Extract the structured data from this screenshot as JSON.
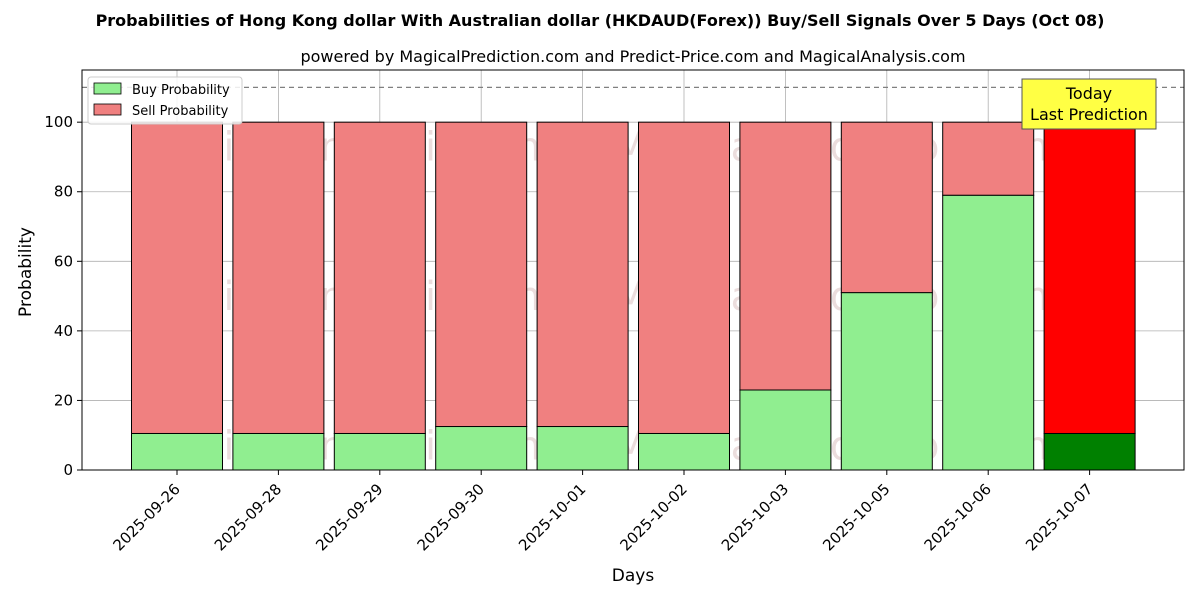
{
  "chart_data": {
    "type": "bar",
    "stacked": true,
    "title": "Probabilities of Hong Kong dollar With Australian dollar (HKDAUD(Forex)) Buy/Sell Signals Over 5 Days (Oct 08)",
    "subtitle": "powered by MagicalPrediction.com and Predict-Price.com and MagicalAnalysis.com",
    "xlabel": "Days",
    "ylabel": "Probability",
    "ylim": [
      0,
      115
    ],
    "yticks": [
      0,
      20,
      40,
      60,
      80,
      100
    ],
    "grid": true,
    "legend_position": "top-left",
    "reference_line": 110,
    "categories": [
      "2025-09-26",
      "2025-09-28",
      "2025-09-29",
      "2025-09-30",
      "2025-10-01",
      "2025-10-02",
      "2025-10-03",
      "2025-10-05",
      "2025-10-06",
      "2025-10-07"
    ],
    "series": [
      {
        "name": "Buy Probability",
        "values": [
          10.5,
          10.5,
          10.5,
          12.5,
          12.5,
          10.5,
          23,
          51,
          79,
          10.5
        ],
        "color": "#90ee90",
        "highlight_color": "#008000"
      },
      {
        "name": "Sell Probability",
        "values": [
          89.5,
          89.5,
          89.5,
          87.5,
          87.5,
          89.5,
          77,
          49,
          21,
          89.5
        ],
        "color": "#f08080",
        "highlight_color": "#ff0000"
      }
    ],
    "highlight_index": 9,
    "annotation": {
      "line1": "Today",
      "line2": "Last Prediction",
      "color": "#ffff44"
    },
    "watermarks": [
      "MagicalAnalysis.com",
      "MagicalPrediction.com"
    ]
  }
}
